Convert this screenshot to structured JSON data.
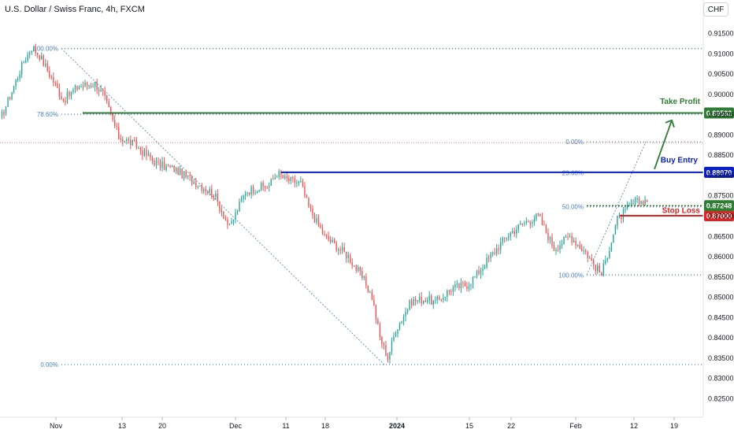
{
  "header": {
    "title": "U.S. Dollar / Swiss Franc, 4h, FXCM",
    "currency_button": "CHF"
  },
  "colors": {
    "up": "#26a69a",
    "down": "#ef5350",
    "take_profit": "#2e7d32",
    "buy_entry": "#0a1ec8",
    "stop_loss": "#e02222",
    "fib": "#4a7fc1",
    "last_price_line": "#ef5350",
    "axis_text": "#131722"
  },
  "chart_data": {
    "type": "candlestick",
    "x_ticks": [
      "Nov",
      "13",
      "20",
      "Dec",
      "11",
      "18",
      "2024",
      "15",
      "22",
      "Feb",
      "12",
      "19"
    ],
    "y_ticks": [
      "0.91500",
      "0.91000",
      "0.90500",
      "0.90000",
      "0.89500",
      "0.89000",
      "0.88500",
      "0.88000",
      "0.87500",
      "0.87000",
      "0.86500",
      "0.86000",
      "0.85500",
      "0.85000",
      "0.84500",
      "0.84000",
      "0.83500",
      "0.83000",
      "0.82500"
    ],
    "ylim": [
      0.8225,
      0.9175
    ],
    "price_path": [
      [
        0,
        0.8935
      ],
      [
        3,
        0.908
      ],
      [
        4,
        0.9115
      ],
      [
        5,
        0.9095
      ],
      [
        8,
        0.8985
      ],
      [
        10,
        0.902
      ],
      [
        12,
        0.9025
      ],
      [
        13,
        0.9
      ],
      [
        15,
        0.8895
      ],
      [
        17,
        0.8875
      ],
      [
        20,
        0.8825
      ],
      [
        22,
        0.8815
      ],
      [
        24,
        0.879
      ],
      [
        27,
        0.8755
      ],
      [
        29,
        0.867
      ],
      [
        31,
        0.876
      ],
      [
        34,
        0.8775
      ],
      [
        35,
        0.8805
      ],
      [
        36,
        0.879
      ],
      [
        38,
        0.878
      ],
      [
        39,
        0.872
      ],
      [
        41,
        0.865
      ],
      [
        44,
        0.86
      ],
      [
        46,
        0.854
      ],
      [
        47,
        0.85
      ],
      [
        48,
        0.84
      ],
      [
        49,
        0.835
      ],
      [
        50,
        0.842
      ],
      [
        52,
        0.849
      ],
      [
        54,
        0.8495
      ],
      [
        55,
        0.8485
      ],
      [
        57,
        0.852
      ],
      [
        59,
        0.853
      ],
      [
        60,
        0.855
      ],
      [
        62,
        0.86
      ],
      [
        64,
        0.865
      ],
      [
        66,
        0.868
      ],
      [
        68,
        0.87
      ],
      [
        69,
        0.866
      ],
      [
        70,
        0.862
      ],
      [
        72,
        0.865
      ],
      [
        74,
        0.861
      ],
      [
        75,
        0.858
      ],
      [
        76,
        0.8555
      ],
      [
        78,
        0.869
      ],
      [
        80,
        0.873
      ],
      [
        82,
        0.874
      ],
      [
        83,
        0.876
      ],
      [
        84,
        0.8785
      ],
      [
        85,
        0.888
      ]
    ],
    "levels": [
      {
        "name": "Take Profit",
        "value": 0.89532,
        "label": "0.89532",
        "color": "#2e7d32"
      },
      {
        "name": "Buy Entry",
        "value": 0.8807,
        "label": "0.88070",
        "color": "#0a1ec8"
      },
      {
        "name": "Stop Loss",
        "value": 0.87,
        "label": "0.87000",
        "color": "#e02222"
      },
      {
        "name": "",
        "value": 0.87248,
        "label": "0.87248",
        "color": "#2e7d32"
      }
    ],
    "fib_left": [
      {
        "label": "100.00%",
        "value": 0.9112
      },
      {
        "label": "78.60%",
        "value": 0.895
      },
      {
        "label": "0.00%",
        "value": 0.8333
      }
    ],
    "fib_right": [
      {
        "label": "0.00%",
        "value": 0.8882
      },
      {
        "label": "23.60%",
        "value": 0.8806
      },
      {
        "label": "50.00%",
        "value": 0.8722
      },
      {
        "label": "100.00%",
        "value": 0.8554
      }
    ],
    "annotations": {
      "take_profit": "Take Profit",
      "buy_entry": "Buy Entry",
      "stop_loss": "Stop Loss"
    }
  }
}
